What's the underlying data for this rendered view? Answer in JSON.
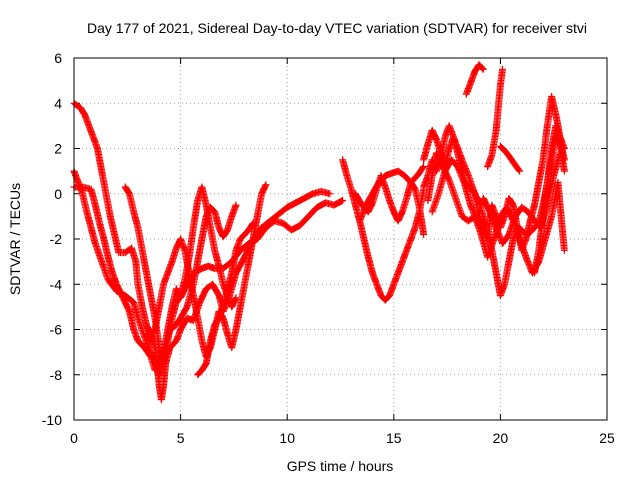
{
  "chart_data": {
    "type": "scatter",
    "title": "Day 177 of 2021, Sidereal Day-to-day VTEC variation (SDTVAR) for receiver stvi",
    "xlabel": "GPS time / hours",
    "ylabel": "SDTVAR / TECUs",
    "xlim": [
      0,
      25
    ],
    "ylim": [
      -10,
      6
    ],
    "xticks": [
      0,
      5,
      10,
      15,
      20,
      25
    ],
    "yticks": [
      -10,
      -8,
      -6,
      -4,
      -2,
      0,
      2,
      4,
      6
    ],
    "grid": true,
    "marker": "plus",
    "color": "#ff0000",
    "traces": [
      [
        [
          0.0,
          1.0
        ],
        [
          0.2,
          0.5
        ],
        [
          0.4,
          0.0
        ],
        [
          0.6,
          -0.8
        ],
        [
          0.8,
          -1.5
        ],
        [
          1.0,
          -2.2
        ],
        [
          1.3,
          -3.0
        ],
        [
          1.6,
          -3.8
        ],
        [
          2.0,
          -4.3
        ],
        [
          2.4,
          -4.5
        ],
        [
          2.8,
          -4.8
        ],
        [
          3.0,
          -5.5
        ],
        [
          3.3,
          -6.3
        ],
        [
          3.6,
          -7.0
        ],
        [
          3.8,
          -7.6
        ],
        [
          4.0,
          -8.0
        ],
        [
          4.2,
          -7.0
        ],
        [
          4.4,
          -6.0
        ],
        [
          4.6,
          -5.0
        ],
        [
          4.8,
          -4.2
        ],
        [
          5.0,
          -4.6
        ],
        [
          5.2,
          -4.2
        ],
        [
          5.4,
          -3.8
        ],
        [
          5.6,
          -3.5
        ],
        [
          5.8,
          -3.4
        ],
        [
          6.0,
          -3.3
        ],
        [
          6.3,
          -3.2
        ],
        [
          6.6,
          -3.3
        ],
        [
          7.0,
          -3.3
        ],
        [
          7.4,
          -3.0
        ],
        [
          7.8,
          -2.5
        ],
        [
          8.2,
          -2.2
        ],
        [
          8.6,
          -2.0
        ],
        [
          9.0,
          -1.5
        ],
        [
          9.4,
          -1.2
        ],
        [
          9.8,
          -1.3
        ],
        [
          10.2,
          -1.6
        ],
        [
          10.6,
          -1.4
        ],
        [
          11.0,
          -1.0
        ],
        [
          11.4,
          -0.6
        ],
        [
          11.8,
          -0.4
        ],
        [
          12.2,
          -0.5
        ],
        [
          12.6,
          -0.3
        ]
      ],
      [
        [
          0.0,
          4.0
        ],
        [
          0.3,
          3.8
        ],
        [
          0.5,
          3.5
        ],
        [
          0.7,
          3.0
        ],
        [
          0.9,
          2.5
        ],
        [
          1.1,
          2.0
        ],
        [
          1.3,
          1.0
        ],
        [
          1.5,
          0.0
        ],
        [
          1.7,
          -1.0
        ],
        [
          1.9,
          -1.8
        ],
        [
          2.1,
          -2.6
        ],
        [
          2.4,
          -2.6
        ],
        [
          2.7,
          -2.4
        ],
        [
          2.9,
          -3.0
        ],
        [
          3.0,
          -4.0
        ],
        [
          3.2,
          -5.0
        ],
        [
          3.4,
          -5.8
        ],
        [
          3.6,
          -6.2
        ],
        [
          3.8,
          -6.8
        ],
        [
          3.9,
          -7.5
        ],
        [
          4.0,
          -8.5
        ],
        [
          4.1,
          -9.1
        ],
        [
          4.2,
          -8.5
        ],
        [
          4.3,
          -7.5
        ],
        [
          4.5,
          -6.8
        ],
        [
          4.8,
          -6.5
        ],
        [
          5.0,
          -6.0
        ],
        [
          5.3,
          -5.5
        ],
        [
          5.6,
          -5.6
        ],
        [
          5.9,
          -4.8
        ],
        [
          6.2,
          -4.2
        ],
        [
          6.5,
          -4.0
        ],
        [
          6.8,
          -4.5
        ],
        [
          7.0,
          -5.2
        ],
        [
          7.3,
          -4.5
        ],
        [
          7.6,
          -3.5
        ],
        [
          8.0,
          -2.8
        ],
        [
          8.4,
          -2.0
        ],
        [
          8.8,
          -1.5
        ],
        [
          9.2,
          -1.2
        ],
        [
          9.6,
          -0.9
        ],
        [
          10.0,
          -0.6
        ],
        [
          10.4,
          -0.4
        ],
        [
          10.8,
          -0.2
        ],
        [
          11.2,
          0.0
        ],
        [
          11.6,
          0.1
        ],
        [
          12.0,
          0.0
        ]
      ],
      [
        [
          0.0,
          0.3
        ],
        [
          0.4,
          0.3
        ],
        [
          0.8,
          0.2
        ],
        [
          1.0,
          -0.5
        ],
        [
          1.2,
          -1.3
        ],
        [
          1.4,
          -2.0
        ],
        [
          1.6,
          -2.8
        ],
        [
          1.8,
          -3.5
        ],
        [
          2.0,
          -4.0
        ],
        [
          2.3,
          -4.6
        ],
        [
          2.6,
          -5.2
        ],
        [
          2.8,
          -6.0
        ],
        [
          3.0,
          -6.5
        ],
        [
          3.3,
          -6.8
        ],
        [
          3.6,
          -7.2
        ],
        [
          3.8,
          -7.8
        ],
        [
          4.0,
          -7.4
        ],
        [
          4.2,
          -6.8
        ],
        [
          4.5,
          -6.0
        ],
        [
          4.8,
          -5.8
        ],
        [
          5.0,
          -5.5
        ],
        [
          5.3,
          -5.0
        ],
        [
          5.6,
          -4.0
        ],
        [
          5.8,
          -3.0
        ],
        [
          6.0,
          -2.0
        ],
        [
          6.2,
          -1.0
        ],
        [
          6.4,
          -0.6
        ],
        [
          6.6,
          -0.8
        ],
        [
          6.8,
          -1.5
        ],
        [
          7.0,
          -1.9
        ],
        [
          7.2,
          -1.6
        ],
        [
          7.4,
          -1.0
        ],
        [
          7.6,
          -0.5
        ]
      ],
      [
        [
          2.4,
          0.3
        ],
        [
          2.6,
          0.0
        ],
        [
          2.8,
          -0.8
        ],
        [
          3.0,
          -1.5
        ],
        [
          3.2,
          -2.5
        ],
        [
          3.4,
          -3.5
        ],
        [
          3.6,
          -4.5
        ],
        [
          3.8,
          -5.5
        ],
        [
          4.0,
          -6.8
        ],
        [
          4.2,
          -7.5
        ],
        [
          4.4,
          -6.5
        ],
        [
          4.6,
          -5.5
        ],
        [
          4.8,
          -4.8
        ],
        [
          5.0,
          -4.5
        ],
        [
          5.2,
          -3.8
        ],
        [
          5.4,
          -2.8
        ],
        [
          5.6,
          -1.5
        ],
        [
          5.8,
          -0.3
        ],
        [
          6.0,
          0.3
        ],
        [
          6.2,
          -0.5
        ],
        [
          6.4,
          -1.5
        ],
        [
          6.6,
          -2.5
        ],
        [
          6.8,
          -3.2
        ],
        [
          7.0,
          -4.0
        ],
        [
          7.2,
          -4.5
        ],
        [
          7.4,
          -5.0
        ],
        [
          7.6,
          -4.6
        ]
      ],
      [
        [
          3.4,
          -6.2
        ],
        [
          3.6,
          -6.5
        ],
        [
          3.8,
          -6.0
        ],
        [
          4.0,
          -5.0
        ],
        [
          4.2,
          -4.0
        ],
        [
          4.4,
          -3.5
        ],
        [
          4.6,
          -3.0
        ],
        [
          4.8,
          -2.4
        ],
        [
          5.0,
          -2.0
        ],
        [
          5.2,
          -2.5
        ],
        [
          5.4,
          -3.5
        ],
        [
          5.6,
          -4.5
        ],
        [
          5.8,
          -5.5
        ],
        [
          6.0,
          -6.5
        ],
        [
          6.2,
          -7.2
        ],
        [
          6.4,
          -6.8
        ],
        [
          6.6,
          -6.0
        ],
        [
          6.8,
          -5.2
        ],
        [
          7.0,
          -5.5
        ],
        [
          7.2,
          -6.2
        ],
        [
          7.4,
          -6.8
        ],
        [
          7.6,
          -6.0
        ],
        [
          7.8,
          -5.0
        ],
        [
          8.0,
          -4.0
        ],
        [
          8.2,
          -3.0
        ],
        [
          8.4,
          -2.0
        ],
        [
          8.6,
          -1.0
        ],
        [
          8.8,
          0.0
        ],
        [
          9.0,
          0.4
        ]
      ],
      [
        [
          5.8,
          -8.0
        ],
        [
          6.0,
          -7.8
        ],
        [
          6.2,
          -7.5
        ],
        [
          6.4,
          -6.5
        ],
        [
          6.6,
          -5.8
        ],
        [
          6.8,
          -5.5
        ],
        [
          7.0,
          -5.0
        ],
        [
          7.2,
          -4.2
        ],
        [
          7.4,
          -3.5
        ],
        [
          7.6,
          -2.5
        ],
        [
          7.8,
          -2.0
        ],
        [
          8.0,
          -1.8
        ],
        [
          8.2,
          -1.6
        ],
        [
          8.4,
          -1.3
        ]
      ],
      [
        [
          12.6,
          1.5
        ],
        [
          12.8,
          0.8
        ],
        [
          13.0,
          0.2
        ],
        [
          13.2,
          -0.5
        ],
        [
          13.4,
          -1.2
        ],
        [
          13.6,
          -2.0
        ],
        [
          13.8,
          -2.8
        ],
        [
          14.0,
          -3.5
        ],
        [
          14.2,
          -4.0
        ],
        [
          14.4,
          -4.5
        ],
        [
          14.6,
          -4.7
        ],
        [
          14.8,
          -4.5
        ],
        [
          15.0,
          -4.0
        ],
        [
          15.2,
          -3.5
        ],
        [
          15.4,
          -3.0
        ],
        [
          15.6,
          -2.5
        ],
        [
          15.8,
          -2.0
        ],
        [
          16.0,
          -1.5
        ],
        [
          16.2,
          -0.8
        ],
        [
          16.4,
          0.2
        ]
      ],
      [
        [
          13.2,
          0.0
        ],
        [
          13.5,
          -0.5
        ],
        [
          13.8,
          -0.8
        ],
        [
          14.0,
          -0.4
        ],
        [
          14.2,
          0.2
        ],
        [
          14.4,
          0.8
        ],
        [
          14.6,
          0.3
        ],
        [
          14.8,
          -0.3
        ],
        [
          15.0,
          -0.8
        ],
        [
          15.2,
          -1.2
        ],
        [
          15.4,
          -0.8
        ],
        [
          15.6,
          -0.2
        ],
        [
          15.8,
          0.5
        ],
        [
          16.0,
          0.2
        ],
        [
          16.2,
          -0.6
        ],
        [
          16.4,
          -1.8
        ]
      ],
      [
        [
          13.4,
          -1.2
        ],
        [
          13.7,
          -0.5
        ],
        [
          14.0,
          0.0
        ],
        [
          14.3,
          0.5
        ],
        [
          14.6,
          0.8
        ],
        [
          14.9,
          0.9
        ],
        [
          15.2,
          1.0
        ],
        [
          15.5,
          0.8
        ],
        [
          15.8,
          0.5
        ],
        [
          16.1,
          0.8
        ],
        [
          16.4,
          1.2
        ]
      ],
      [
        [
          16.4,
          1.5
        ],
        [
          16.6,
          2.2
        ],
        [
          16.8,
          2.8
        ],
        [
          17.0,
          2.4
        ],
        [
          17.2,
          1.8
        ],
        [
          17.4,
          1.3
        ],
        [
          17.6,
          2.0
        ],
        [
          17.8,
          2.5
        ],
        [
          18.0,
          1.8
        ],
        [
          18.2,
          1.0
        ],
        [
          18.4,
          0.4
        ],
        [
          18.6,
          0.3
        ],
        [
          18.8,
          0.0
        ],
        [
          19.0,
          -0.4
        ],
        [
          19.2,
          -1.0
        ],
        [
          19.4,
          -1.8
        ],
        [
          19.6,
          -2.5
        ],
        [
          19.8,
          -3.5
        ],
        [
          20.0,
          -4.5
        ],
        [
          20.2,
          -4.0
        ],
        [
          20.4,
          -3.0
        ],
        [
          20.6,
          -2.0
        ],
        [
          20.8,
          -1.5
        ],
        [
          21.0,
          -1.6
        ],
        [
          21.2,
          -1.8
        ],
        [
          21.4,
          -1.7
        ],
        [
          21.6,
          -1.5
        ],
        [
          21.8,
          -1.3
        ],
        [
          22.0,
          -0.5
        ],
        [
          22.2,
          0.5
        ],
        [
          22.4,
          1.5
        ],
        [
          22.6,
          2.5
        ],
        [
          22.8,
          2.2
        ],
        [
          23.0,
          1.0
        ]
      ],
      [
        [
          16.4,
          0.3
        ],
        [
          16.6,
          0.8
        ],
        [
          16.8,
          1.5
        ],
        [
          17.0,
          1.0
        ],
        [
          17.2,
          1.5
        ],
        [
          17.4,
          2.5
        ],
        [
          17.6,
          3.0
        ],
        [
          17.8,
          2.5
        ],
        [
          18.0,
          2.0
        ],
        [
          18.2,
          1.5
        ],
        [
          18.5,
          0.8
        ],
        [
          18.8,
          0.0
        ],
        [
          19.0,
          -1.0
        ],
        [
          19.2,
          -1.5
        ],
        [
          19.4,
          -2.0
        ],
        [
          19.6,
          -0.5
        ],
        [
          19.8,
          -1.0
        ],
        [
          20.0,
          -1.5
        ],
        [
          20.2,
          -1.0
        ],
        [
          20.4,
          -0.2
        ],
        [
          20.6,
          -0.5
        ],
        [
          20.8,
          -1.5
        ],
        [
          21.0,
          -2.5
        ],
        [
          21.2,
          -2.0
        ],
        [
          21.4,
          -1.2
        ],
        [
          21.6,
          -0.5
        ],
        [
          21.8,
          0.5
        ],
        [
          22.0,
          1.5
        ],
        [
          22.2,
          3.0
        ],
        [
          22.4,
          4.3
        ],
        [
          22.6,
          3.5
        ],
        [
          22.8,
          2.5
        ],
        [
          23.0,
          2.0
        ]
      ],
      [
        [
          16.6,
          -0.3
        ],
        [
          16.8,
          0.8
        ],
        [
          17.0,
          1.8
        ],
        [
          17.3,
          1.2
        ],
        [
          17.6,
          0.6
        ],
        [
          17.9,
          -0.2
        ],
        [
          18.2,
          -1.0
        ],
        [
          18.5,
          -1.2
        ],
        [
          18.8,
          -1.0
        ],
        [
          19.1,
          -1.8
        ],
        [
          19.4,
          -2.8
        ],
        [
          19.7,
          -2.0
        ],
        [
          20.0,
          -1.0
        ],
        [
          20.3,
          -0.6
        ],
        [
          20.6,
          -1.2
        ],
        [
          20.9,
          -2.0
        ],
        [
          21.2,
          -2.8
        ],
        [
          21.5,
          -3.5
        ],
        [
          21.8,
          -3.0
        ],
        [
          22.1,
          -2.0
        ],
        [
          22.4,
          -1.0
        ],
        [
          22.7,
          0.5
        ],
        [
          23.0,
          -2.5
        ]
      ],
      [
        [
          16.8,
          -0.8
        ],
        [
          17.1,
          0.0
        ],
        [
          17.4,
          1.0
        ],
        [
          17.7,
          1.5
        ],
        [
          18.0,
          1.2
        ],
        [
          18.3,
          0.5
        ],
        [
          18.6,
          -0.5
        ],
        [
          18.9,
          -1.2
        ],
        [
          19.2,
          -0.2
        ],
        [
          19.5,
          -0.8
        ],
        [
          19.8,
          -1.5
        ],
        [
          20.1,
          -2.2
        ],
        [
          20.4,
          -1.8
        ],
        [
          20.7,
          -1.0
        ],
        [
          21.0,
          -0.6
        ],
        [
          21.3,
          -0.8
        ],
        [
          21.6,
          -1.2
        ],
        [
          21.9,
          -1.5
        ],
        [
          22.2,
          -0.5
        ],
        [
          22.5,
          0.8
        ],
        [
          22.8,
          1.8
        ]
      ],
      [
        [
          18.4,
          4.4
        ],
        [
          18.6,
          4.9
        ],
        [
          18.8,
          5.4
        ],
        [
          19.0,
          5.7
        ],
        [
          19.2,
          5.5
        ]
      ],
      [
        [
          19.4,
          1.2
        ],
        [
          19.6,
          1.7
        ],
        [
          19.8,
          2.8
        ],
        [
          19.9,
          3.8
        ],
        [
          20.0,
          4.8
        ],
        [
          20.1,
          5.5
        ]
      ],
      [
        [
          20.0,
          2.1
        ],
        [
          20.3,
          1.8
        ],
        [
          20.6,
          1.4
        ],
        [
          20.9,
          1.0
        ]
      ],
      [
        [
          21.6,
          -3.5
        ],
        [
          21.8,
          -2.5
        ],
        [
          22.0,
          -1.0
        ],
        [
          22.2,
          0.5
        ],
        [
          22.4,
          2.0
        ],
        [
          22.6,
          3.0
        ],
        [
          22.8,
          2.4
        ],
        [
          23.0,
          1.5
        ]
      ]
    ]
  }
}
